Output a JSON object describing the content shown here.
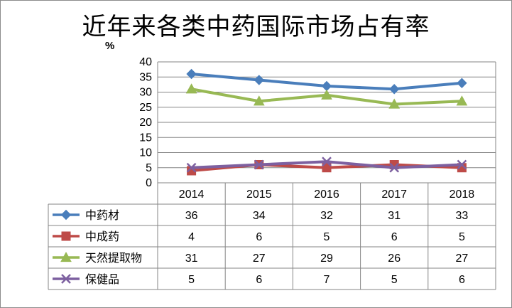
{
  "chart_data": {
    "type": "line",
    "title": "近年来各类中药国际市场占有率",
    "ylabel": "%",
    "categories": [
      "2014",
      "2015",
      "2016",
      "2017",
      "2018"
    ],
    "ylim": [
      0,
      40
    ],
    "yticks": [
      "0",
      "5",
      "10",
      "15",
      "20",
      "25",
      "30",
      "35",
      "40"
    ],
    "grid": true,
    "legend": "data-table-left",
    "series": [
      {
        "name": "中药材",
        "values": [
          36,
          34,
          32,
          31,
          33
        ],
        "color": "#4a7ebb",
        "marker": "diamond"
      },
      {
        "name": "中成药",
        "values": [
          4,
          6,
          5,
          6,
          5
        ],
        "color": "#be4b48",
        "marker": "square"
      },
      {
        "name": "天然提取物",
        "values": [
          31,
          27,
          29,
          26,
          27
        ],
        "color": "#98b954",
        "marker": "triangle"
      },
      {
        "name": "保健品",
        "values": [
          5,
          6,
          7,
          5,
          6
        ],
        "color": "#7d60a0",
        "marker": "x"
      }
    ]
  }
}
